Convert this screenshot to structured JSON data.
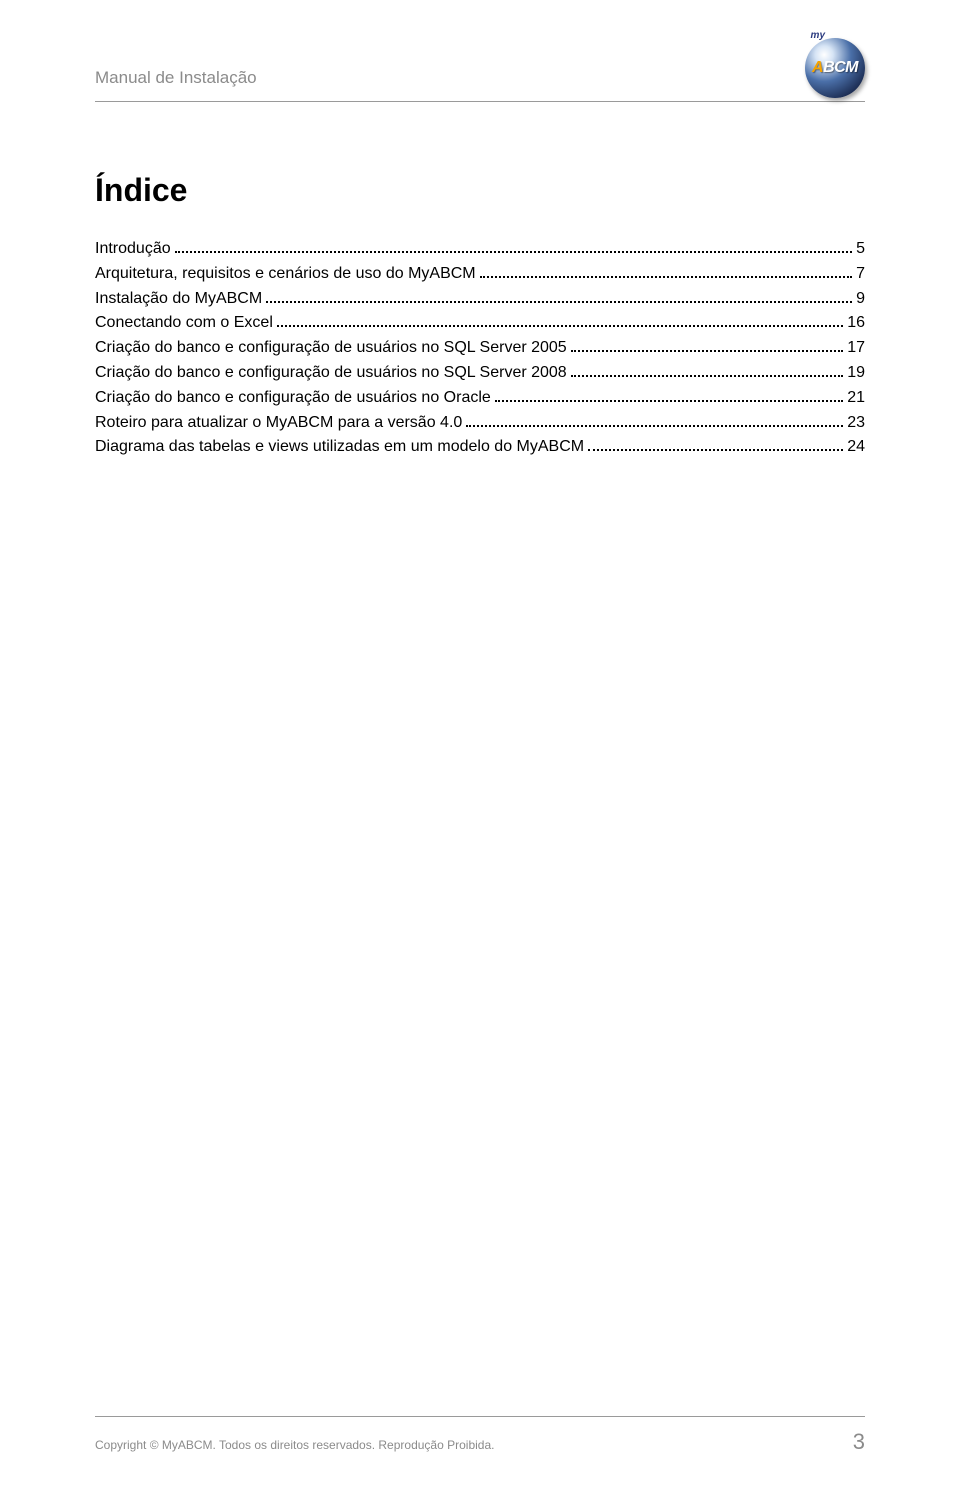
{
  "header": {
    "title": "Manual de Instalação",
    "logo_my": "my",
    "logo_a": "A",
    "logo_bcm": "BCM"
  },
  "toc": {
    "title": "Índice",
    "items": [
      {
        "label": "Introdução",
        "page": "5"
      },
      {
        "label": "Arquitetura, requisitos e cenários de uso do MyABCM",
        "page": "7"
      },
      {
        "label": "Instalação do MyABCM",
        "page": "9"
      },
      {
        "label": "Conectando com o Excel",
        "page": "16"
      },
      {
        "label": "Criação do banco e configuração de usuários no SQL Server 2005",
        "page": "17"
      },
      {
        "label": "Criação do banco e configuração de usuários no SQL Server 2008",
        "page": "19"
      },
      {
        "label": "Criação do banco e configuração de usuários no Oracle",
        "page": "21"
      },
      {
        "label": "Roteiro para atualizar o MyABCM para a versão 4.0",
        "page": "23"
      },
      {
        "label": "Diagrama das tabelas e views utilizadas em um modelo do MyABCM",
        "page": "24"
      }
    ]
  },
  "footer": {
    "copyright": "Copyright © MyABCM. Todos os direitos reservados.   Reprodução Proibida.",
    "page_number": "3"
  },
  "colors": {
    "muted_text": "#8b8b8b",
    "rule": "#9a9a9a",
    "body_text": "#000000",
    "background": "#ffffff",
    "logo_accent": "#f5a300",
    "logo_dark": "#1a2a4f"
  },
  "typography": {
    "body_font": "Verdana",
    "toc_title_size_pt": 24,
    "toc_item_size_pt": 12,
    "header_size_pt": 13,
    "footer_size_pt": 9,
    "page_number_size_pt": 16
  }
}
